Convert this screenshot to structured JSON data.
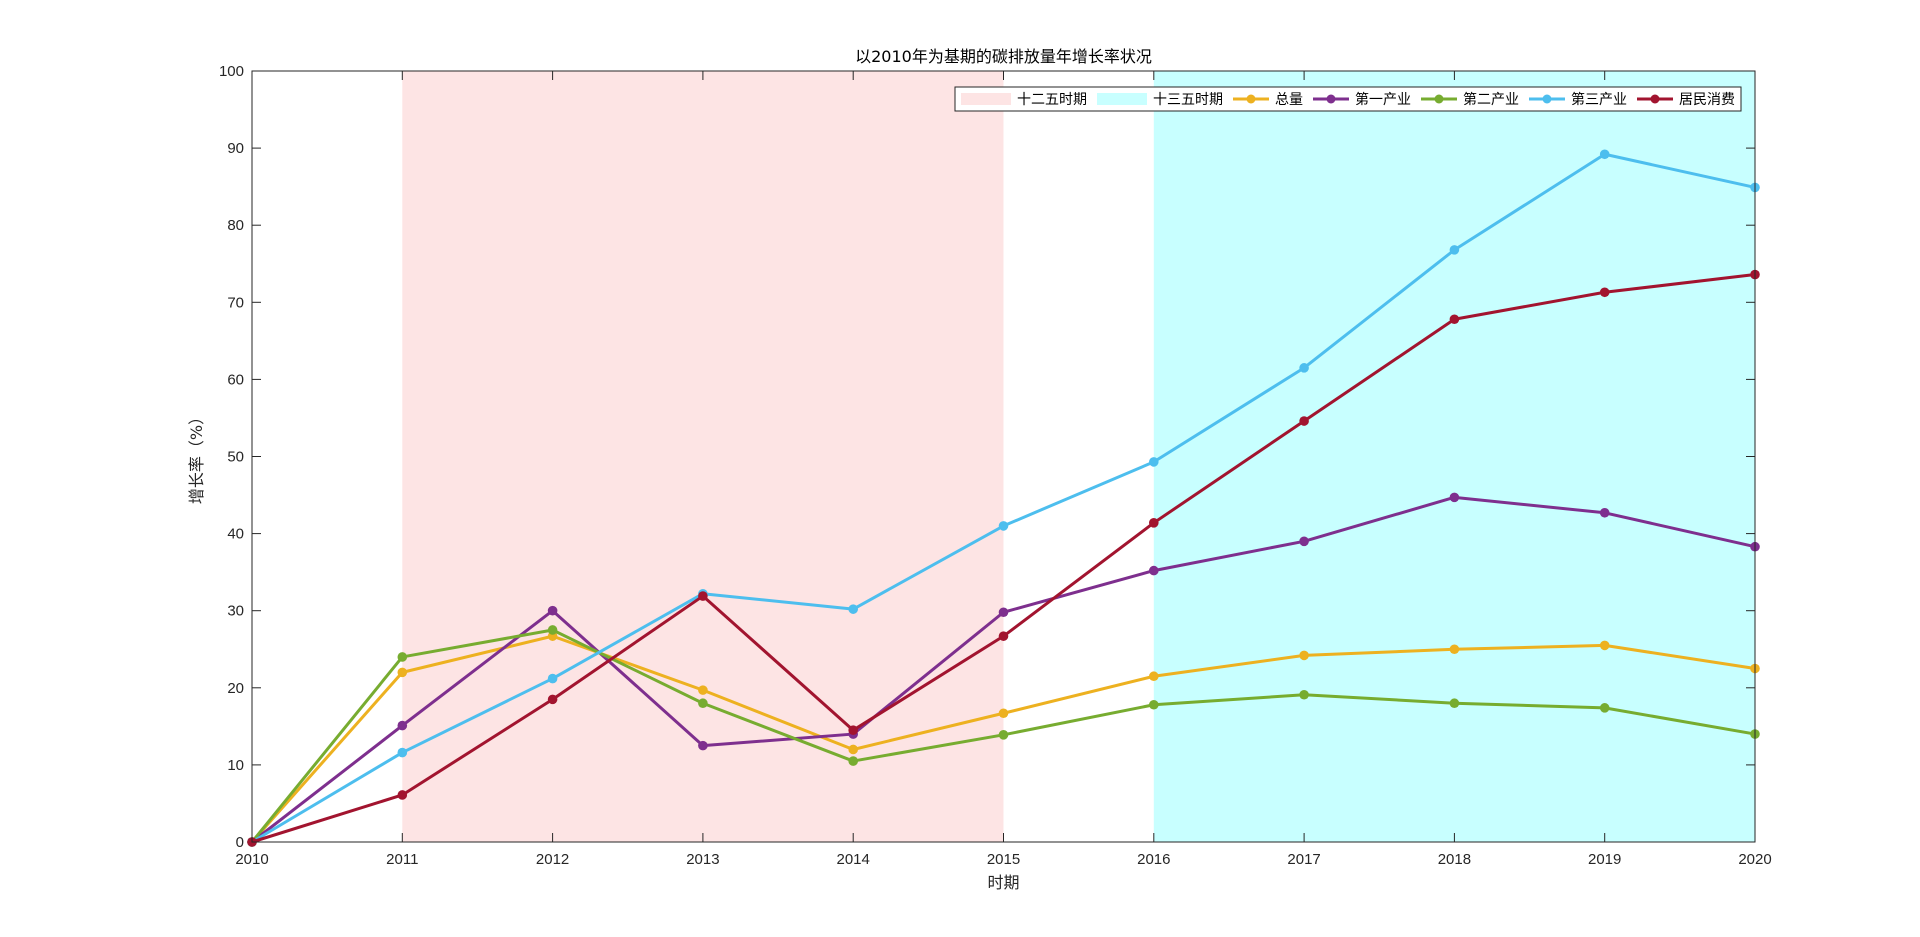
{
  "chart_data": {
    "type": "line",
    "title": "以2010年为基期的碳排放量年增长率状况",
    "xlabel": "时期",
    "ylabel": "增长率（%）",
    "x": [
      2010,
      2011,
      2012,
      2013,
      2014,
      2015,
      2016,
      2017,
      2018,
      2019,
      2020
    ],
    "xlim": [
      2010,
      2020
    ],
    "ylim": [
      0,
      100
    ],
    "yticks": [
      0,
      10,
      20,
      30,
      40,
      50,
      60,
      70,
      80,
      90,
      100
    ],
    "grid": false,
    "legend_position": "top-right",
    "periods": [
      {
        "name": "十二五时期",
        "start": 2011,
        "end": 2015,
        "color": "#fde4e4"
      },
      {
        "name": "十三五时期",
        "start": 2016,
        "end": 2020,
        "color": "#c8ffff"
      }
    ],
    "series": [
      {
        "name": "总量",
        "color": "#edb120",
        "values": [
          0,
          22.0,
          26.7,
          19.7,
          12.0,
          16.7,
          21.5,
          24.2,
          25.0,
          25.5,
          22.5
        ]
      },
      {
        "name": "第一产业",
        "color": "#7e2f8e",
        "values": [
          0,
          15.1,
          30.0,
          12.5,
          14.0,
          29.8,
          35.2,
          39.0,
          44.7,
          42.7,
          38.3
        ]
      },
      {
        "name": "第二产业",
        "color": "#77ac30",
        "values": [
          0,
          24.0,
          27.5,
          18.0,
          10.5,
          13.9,
          17.8,
          19.1,
          18.0,
          17.4,
          14.0
        ]
      },
      {
        "name": "第三产业",
        "color": "#4dbeee",
        "values": [
          0,
          11.6,
          21.2,
          32.2,
          30.2,
          41.0,
          49.3,
          61.5,
          76.8,
          89.2,
          84.9
        ]
      },
      {
        "name": "居民消费",
        "color": "#a2142f",
        "values": [
          0,
          6.1,
          18.5,
          31.9,
          14.5,
          26.7,
          41.4,
          54.6,
          67.8,
          71.3,
          73.6
        ]
      }
    ]
  }
}
